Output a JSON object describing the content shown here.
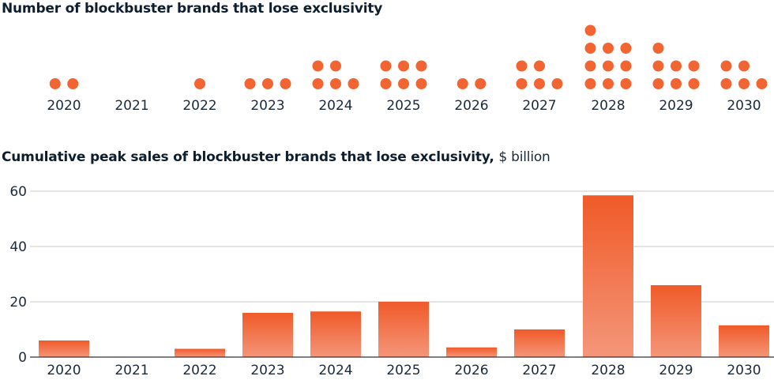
{
  "chart_data": [
    {
      "type": "dot",
      "title": "Number of blockbuster brands that lose exclusivity",
      "categories": [
        "2020",
        "2021",
        "2022",
        "2023",
        "2024",
        "2025",
        "2026",
        "2027",
        "2028",
        "2029",
        "2030"
      ],
      "values": [
        2,
        0,
        1,
        3,
        5,
        6,
        2,
        5,
        10,
        7,
        5
      ],
      "color": "#f26532"
    },
    {
      "type": "bar",
      "title": "Cumulative peak sales of blockbuster brands that lose exclusivity,",
      "unit": "$ billion",
      "categories": [
        "2020",
        "2021",
        "2022",
        "2023",
        "2024",
        "2025",
        "2026",
        "2027",
        "2028",
        "2029",
        "2030"
      ],
      "values": [
        6,
        0,
        3,
        16,
        16.5,
        20,
        3.5,
        10,
        58.5,
        26,
        11.5
      ],
      "ylim": [
        0,
        60
      ],
      "yticks": [
        "0",
        "20",
        "40",
        "60"
      ],
      "grid": true,
      "colors": {
        "bar_top": "#f05a28",
        "bar_bottom": "#f4967a",
        "grid": "#c9c9c9",
        "axis": "#333333"
      }
    }
  ]
}
